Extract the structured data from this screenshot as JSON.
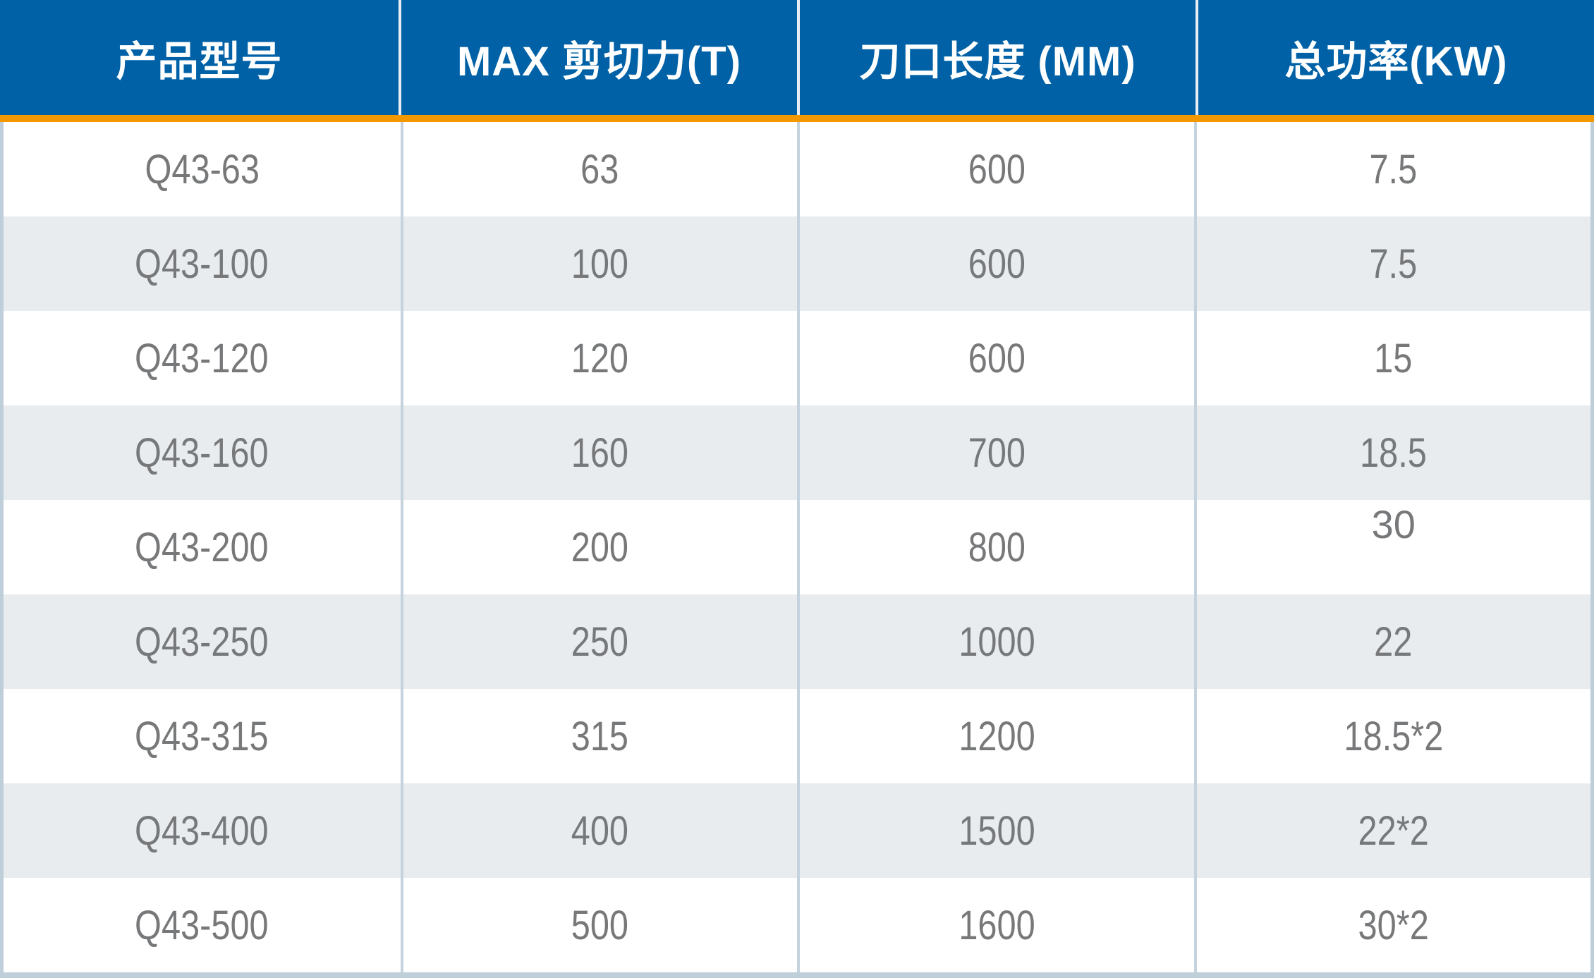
{
  "colors": {
    "header_bg": "#0061a6",
    "header_text": "#ffffff",
    "header_divider": "#e8eef4",
    "accent_bar": "#f39800",
    "row_bg": "#ffffff",
    "row_alt_bg": "#e8ecef",
    "cell_text": "#77787a",
    "grid_line": "#c5d3de",
    "outer_border": "#bfcfda"
  },
  "chart_data": {
    "type": "table",
    "columns": [
      {
        "id": "model",
        "label": "产品型号"
      },
      {
        "id": "max_shear",
        "label": "MAX 剪切力(T)"
      },
      {
        "id": "blade_length",
        "label": "刀口长度 (MM)"
      },
      {
        "id": "total_power",
        "label": "总功率(KW)"
      }
    ],
    "rows": [
      {
        "model": "Q43-63",
        "max_shear": "63",
        "blade_length": "600",
        "total_power": "7.5"
      },
      {
        "model": "Q43-100",
        "max_shear": "100",
        "blade_length": "600",
        "total_power": "7.5"
      },
      {
        "model": "Q43-120",
        "max_shear": "120",
        "blade_length": "600",
        "total_power": "15"
      },
      {
        "model": "Q43-160",
        "max_shear": "160",
        "blade_length": "700",
        "total_power": "18.5"
      },
      {
        "model": "Q43-200",
        "max_shear": "200",
        "blade_length": "800",
        "total_power": "30",
        "cell_style": {
          "total_power": "raised"
        }
      },
      {
        "model": "Q43-250",
        "max_shear": "250",
        "blade_length": "1000",
        "total_power": "22"
      },
      {
        "model": "Q43-315",
        "max_shear": "315",
        "blade_length": "1200",
        "total_power": "18.5*2"
      },
      {
        "model": "Q43-400",
        "max_shear": "400",
        "blade_length": "1500",
        "total_power": "22*2"
      },
      {
        "model": "Q43-500",
        "max_shear": "500",
        "blade_length": "1600",
        "total_power": "30*2"
      }
    ]
  }
}
